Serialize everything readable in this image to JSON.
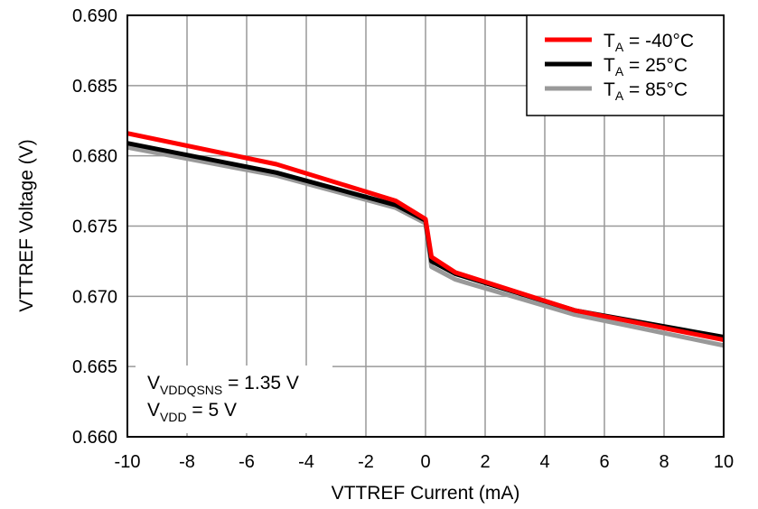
{
  "chart_data": {
    "type": "line",
    "title": "",
    "xlabel": "VTTREF Current (mA)",
    "ylabel": "VTTREF Voltage (V)",
    "xlim": [
      -10,
      10
    ],
    "ylim": [
      0.66,
      0.69
    ],
    "xticks": [
      "-10",
      "-8",
      "-6",
      "-4",
      "-2",
      "0",
      "2",
      "4",
      "6",
      "8",
      "10"
    ],
    "yticks": [
      "0.660",
      "0.665",
      "0.670",
      "0.675",
      "0.680",
      "0.685",
      "0.690"
    ],
    "grid": true,
    "legend_position": "top-right",
    "x": [
      -10,
      -5,
      -1,
      0,
      0.2,
      1,
      5,
      10
    ],
    "series": [
      {
        "name_main": "T",
        "name_sub": "A",
        "name_rest": " = -40°C",
        "color": "#ff0000",
        "values": [
          0.6816,
          0.6794,
          0.6768,
          0.6755,
          0.6728,
          0.6717,
          0.669,
          0.6669
        ]
      },
      {
        "name_main": "T",
        "name_sub": "A",
        "name_rest": " = 25°C",
        "color": "#000000",
        "values": [
          0.6809,
          0.6788,
          0.6765,
          0.6754,
          0.6725,
          0.6716,
          0.669,
          0.6671
        ]
      },
      {
        "name_main": "T",
        "name_sub": "A",
        "name_rest": " = 85°C",
        "color": "#999999",
        "values": [
          0.6806,
          0.6786,
          0.6763,
          0.6752,
          0.6721,
          0.6712,
          0.6687,
          0.6665
        ]
      }
    ],
    "annotations": [
      {
        "main": "V",
        "sub": "VDDQSNS",
        "rest": " = 1.35 V"
      },
      {
        "main": "V",
        "sub": "VDD",
        "rest": " = 5 V"
      }
    ]
  }
}
